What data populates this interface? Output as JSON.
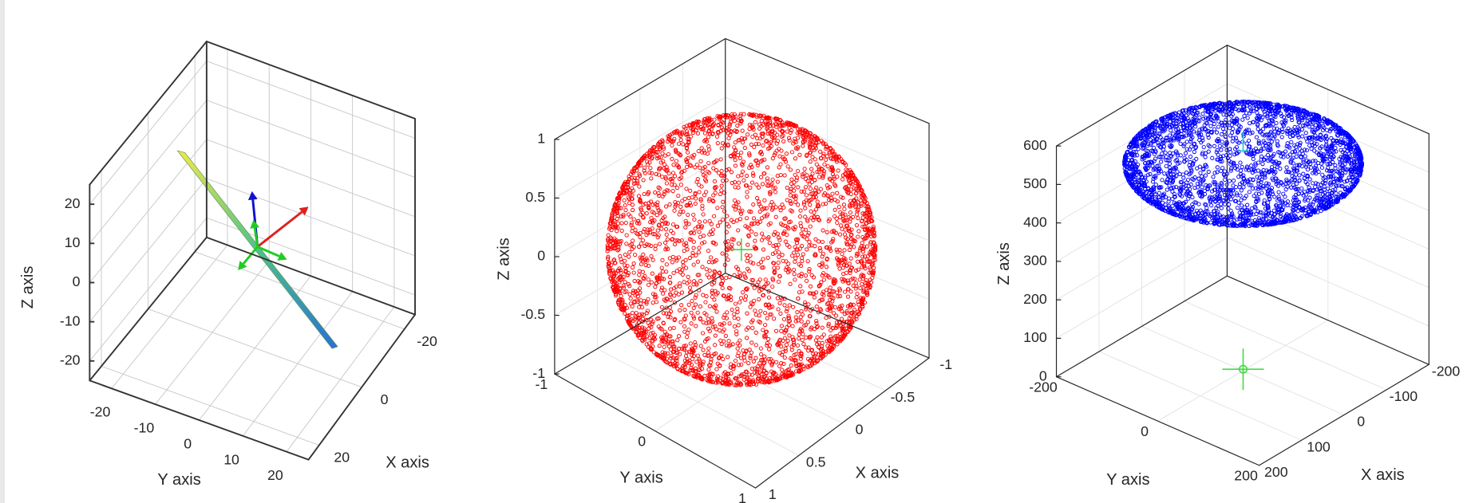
{
  "chart_data": [
    {
      "type": "surface3d",
      "xlabel": "X axis",
      "ylabel": "Y axis",
      "zlabel": "Z axis",
      "xlim": [
        -25,
        25
      ],
      "ylim": [
        -25,
        25
      ],
      "zlim": [
        -25,
        25
      ],
      "xticks": [
        -20,
        0,
        20
      ],
      "yticks": [
        -20,
        -10,
        0,
        10,
        20
      ],
      "zticks": [
        -20,
        -10,
        0,
        10,
        20
      ],
      "grid": true
    },
    {
      "type": "scatter3d",
      "color": "#ff0000",
      "xlabel": "X axis",
      "ylabel": "Y axis",
      "zlabel": "Z axis",
      "xlim": [
        -1,
        1
      ],
      "ylim": [
        -1,
        1
      ],
      "zlim": [
        -1,
        1
      ],
      "xticks": [
        -1,
        -0.5,
        0,
        0.5,
        1
      ],
      "yticks": [
        -1,
        0,
        1
      ],
      "zticks": [
        -1,
        -0.5,
        0,
        0.5,
        1
      ],
      "grid": true
    },
    {
      "type": "scatter3d",
      "color": "#0000ff",
      "xlabel": "X axis",
      "ylabel": "Y axis",
      "zlabel": "Z axis",
      "xlim": [
        -200,
        200
      ],
      "ylim": [
        -200,
        200
      ],
      "zlim": [
        0,
        600
      ],
      "xticks": [
        -200,
        -100,
        0,
        100,
        200
      ],
      "yticks": [
        -200,
        0,
        200
      ],
      "zticks": [
        0,
        100,
        200,
        300,
        400,
        500,
        600
      ],
      "grid": true
    }
  ]
}
